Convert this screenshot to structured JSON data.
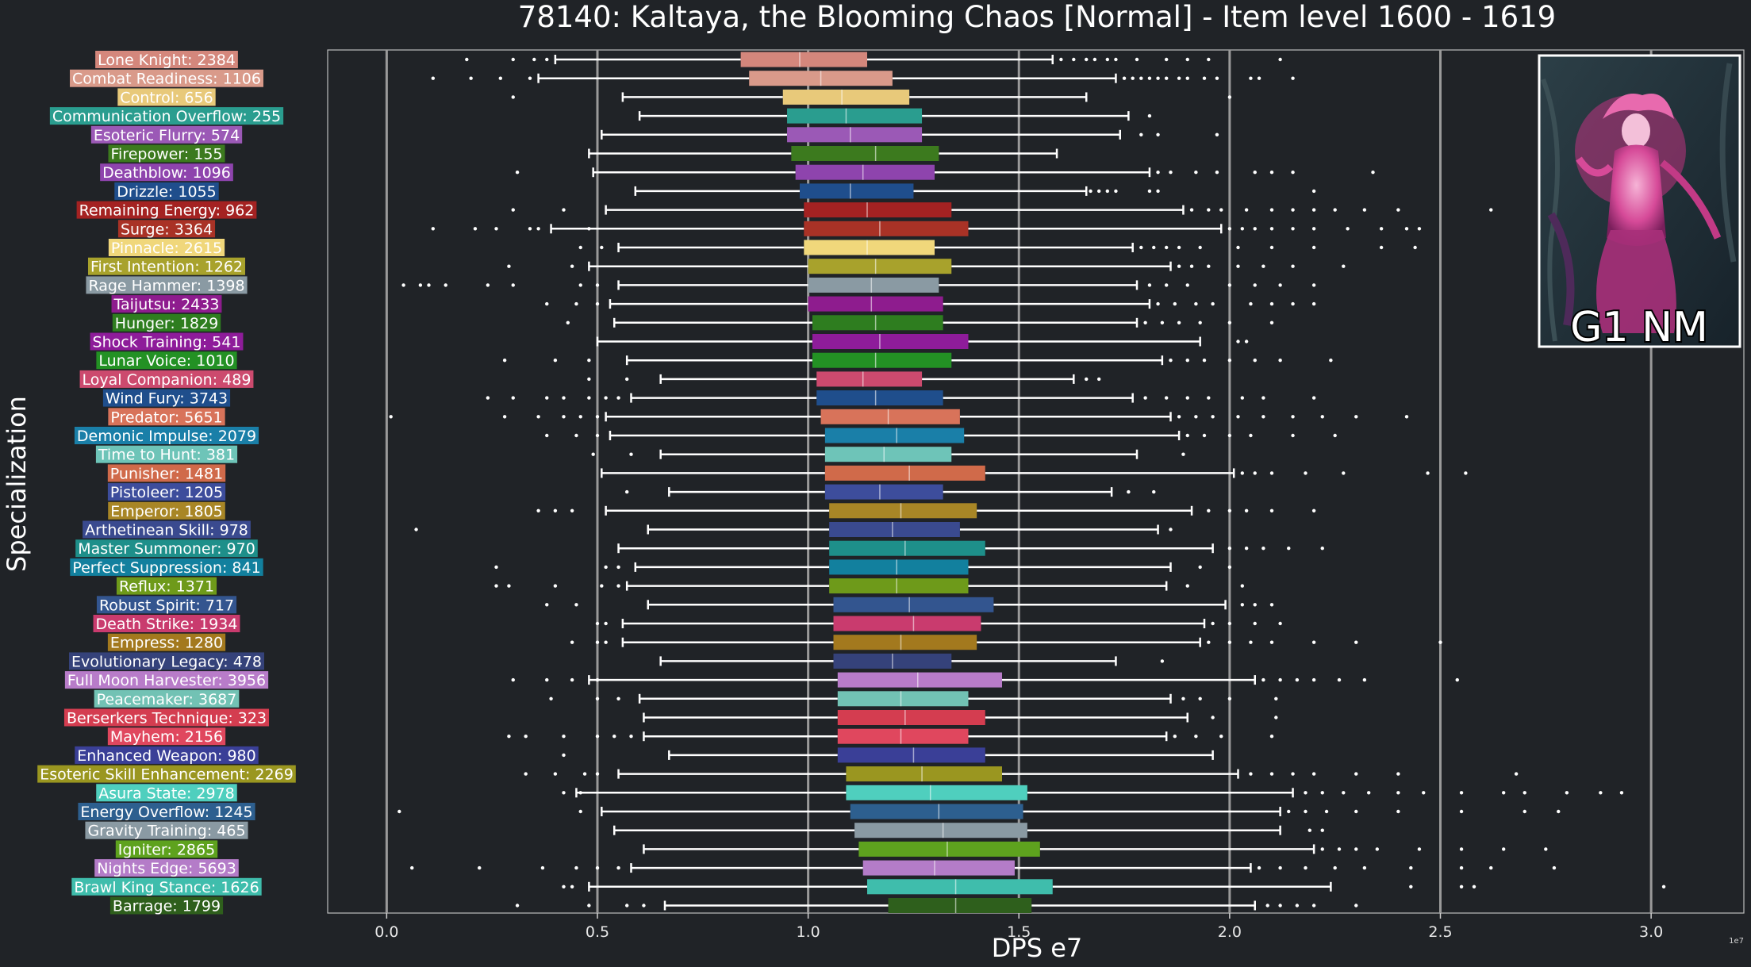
{
  "badge": {
    "text": "G1 NM"
  },
  "colors": {
    "background": "#202327",
    "grid": "#9a9a9a",
    "whisker": "#ffffff"
  },
  "chart_data": {
    "type": "box",
    "title": "78140: Kaltaya, the Blooming Chaos [Normal] - Item level 1600 - 1619",
    "xlabel": "DPS e7",
    "ylabel": "Specialization",
    "scale_note": "1e7",
    "xlim": [
      -0.14,
      3.22
    ],
    "xticks": [
      0.0,
      0.5,
      1.0,
      1.5,
      2.0,
      2.5,
      3.0
    ],
    "xtick_labels": [
      "0.0",
      "0.5",
      "1.0",
      "1.5",
      "2.0",
      "2.5",
      "3.0"
    ],
    "grid": "vertical",
    "series": [
      {
        "label": "Lone Knight: 2384",
        "color": "#d4877c",
        "whislo": 0.4,
        "q1": 0.84,
        "med": 0.98,
        "q3": 1.14,
        "whishi": 1.58,
        "outliers": [
          0.19,
          0.3,
          0.35,
          0.38,
          1.6,
          1.63,
          1.66,
          1.68,
          1.71,
          1.73,
          1.78,
          1.85,
          1.9,
          1.95,
          2.12
        ]
      },
      {
        "label": "Combat Readiness: 1106",
        "color": "#d99a8a",
        "whislo": 0.36,
        "q1": 0.86,
        "med": 1.03,
        "q3": 1.2,
        "whishi": 1.73,
        "outliers": [
          0.11,
          0.2,
          0.27,
          0.34,
          1.75,
          1.77,
          1.79,
          1.81,
          1.83,
          1.85,
          1.88,
          1.9,
          1.94,
          1.97,
          2.05,
          2.07,
          2.15
        ]
      },
      {
        "label": "Control: 656",
        "color": "#e8c97a",
        "whislo": 0.56,
        "q1": 0.94,
        "med": 1.08,
        "q3": 1.24,
        "whishi": 1.66,
        "outliers": [
          0.3,
          2.0
        ]
      },
      {
        "label": "Communication Overflow: 255",
        "color": "#2a9d8f",
        "whislo": 0.6,
        "q1": 0.95,
        "med": 1.09,
        "q3": 1.27,
        "whishi": 1.76,
        "outliers": [
          1.81
        ]
      },
      {
        "label": "Esoteric Flurry: 574",
        "color": "#9b59b6",
        "whislo": 0.51,
        "q1": 0.95,
        "med": 1.1,
        "q3": 1.27,
        "whishi": 1.74,
        "outliers": [
          1.79,
          1.83,
          1.97
        ]
      },
      {
        "label": "Firepower: 155",
        "color": "#3c7a1e",
        "whislo": 0.48,
        "q1": 0.96,
        "med": 1.16,
        "q3": 1.31,
        "whishi": 1.59,
        "outliers": []
      },
      {
        "label": "Deathblow: 1096",
        "color": "#8e44ad",
        "whislo": 0.49,
        "q1": 0.97,
        "med": 1.13,
        "q3": 1.3,
        "whishi": 1.81,
        "outliers": [
          0.31,
          1.83,
          1.86,
          1.92,
          1.97,
          2.06,
          2.1,
          2.15,
          2.34
        ]
      },
      {
        "label": "Drizzle: 1055",
        "color": "#1f4e8c",
        "whislo": 0.59,
        "q1": 0.98,
        "med": 1.1,
        "q3": 1.25,
        "whishi": 1.66,
        "outliers": [
          1.67,
          1.69,
          1.71,
          1.73,
          1.81,
          1.83,
          2.2
        ]
      },
      {
        "label": "Remaining Energy: 962",
        "color": "#a42222",
        "whislo": 0.52,
        "q1": 0.99,
        "med": 1.14,
        "q3": 1.34,
        "whishi": 1.89,
        "outliers": [
          0.3,
          0.42,
          1.91,
          1.95,
          1.98,
          2.04,
          2.1,
          2.15,
          2.2,
          2.25,
          2.32,
          2.4,
          2.62
        ]
      },
      {
        "label": "Surge: 3364",
        "color": "#a93226",
        "whislo": 0.39,
        "q1": 0.99,
        "med": 1.17,
        "q3": 1.38,
        "whishi": 1.98,
        "outliers": [
          0.11,
          0.21,
          0.26,
          0.34,
          0.36,
          0.48,
          2.0,
          2.03,
          2.06,
          2.1,
          2.15,
          2.2,
          2.28,
          2.36,
          2.42,
          2.45
        ]
      },
      {
        "label": "Pinnacle: 2615",
        "color": "#f0d77b",
        "whislo": 0.55,
        "q1": 0.99,
        "med": 1.14,
        "q3": 1.3,
        "whishi": 1.77,
        "outliers": [
          0.46,
          0.51,
          1.79,
          1.82,
          1.85,
          1.88,
          1.93,
          2.02,
          2.1,
          2.2,
          2.36,
          2.44
        ]
      },
      {
        "label": "First Intention: 1262",
        "color": "#a8a22c",
        "whislo": 0.48,
        "q1": 1.0,
        "med": 1.16,
        "q3": 1.34,
        "whishi": 1.86,
        "outliers": [
          0.29,
          0.44,
          1.88,
          1.91,
          1.95,
          2.02,
          2.08,
          2.15,
          2.27
        ]
      },
      {
        "label": "Rage Hammer: 1398",
        "color": "#8a9aa3",
        "whislo": 0.55,
        "q1": 1.0,
        "med": 1.15,
        "q3": 1.31,
        "whishi": 1.78,
        "outliers": [
          0.04,
          0.08,
          0.1,
          0.14,
          0.24,
          0.3,
          0.46,
          0.5,
          1.81,
          1.85,
          1.9,
          2.0,
          2.06,
          2.12,
          2.2
        ]
      },
      {
        "label": "Taijutsu: 2433",
        "color": "#8e1c8e",
        "whislo": 0.53,
        "q1": 1.0,
        "med": 1.15,
        "q3": 1.32,
        "whishi": 1.81,
        "outliers": [
          0.38,
          0.45,
          0.5,
          1.83,
          1.87,
          1.92,
          1.96,
          2.05,
          2.1,
          2.15,
          2.2
        ]
      },
      {
        "label": "Hunger: 1829",
        "color": "#2e7d1f",
        "whislo": 0.54,
        "q1": 1.01,
        "med": 1.16,
        "q3": 1.32,
        "whishi": 1.78,
        "outliers": [
          0.43,
          1.8,
          1.84,
          1.88,
          1.93,
          2.0,
          2.1
        ]
      },
      {
        "label": "Shock Training: 541",
        "color": "#8e1c9a",
        "whislo": 0.5,
        "q1": 1.01,
        "med": 1.17,
        "q3": 1.38,
        "whishi": 1.93,
        "outliers": [
          2.02,
          2.04
        ]
      },
      {
        "label": "Lunar Voice: 1010",
        "color": "#239124",
        "whislo": 0.57,
        "q1": 1.01,
        "med": 1.16,
        "q3": 1.34,
        "whishi": 1.84,
        "outliers": [
          0.28,
          0.4,
          0.48,
          1.86,
          1.9,
          1.94,
          2.0,
          2.06,
          2.12,
          2.24
        ]
      },
      {
        "label": "Loyal Companion: 489",
        "color": "#cc4a6e",
        "whislo": 0.65,
        "q1": 1.02,
        "med": 1.13,
        "q3": 1.27,
        "whishi": 1.63,
        "outliers": [
          0.48,
          0.57,
          1.66,
          1.69
        ]
      },
      {
        "label": "Wind Fury: 3743",
        "color": "#1f4e8c",
        "whislo": 0.58,
        "q1": 1.02,
        "med": 1.16,
        "q3": 1.32,
        "whishi": 1.77,
        "outliers": [
          0.24,
          0.3,
          0.38,
          0.42,
          0.48,
          0.52,
          0.55,
          1.8,
          1.85,
          1.9,
          1.95,
          2.03,
          2.08,
          2.2
        ]
      },
      {
        "label": "Predator: 5651",
        "color": "#d8735a",
        "whislo": 0.52,
        "q1": 1.03,
        "med": 1.19,
        "q3": 1.36,
        "whishi": 1.86,
        "outliers": [
          0.01,
          0.28,
          0.36,
          0.42,
          0.46,
          0.5,
          1.88,
          1.92,
          1.96,
          2.02,
          2.08,
          2.15,
          2.22,
          2.3,
          2.42
        ]
      },
      {
        "label": "Demonic Impulse: 2079",
        "color": "#1a7fa8",
        "whislo": 0.53,
        "q1": 1.04,
        "med": 1.21,
        "q3": 1.37,
        "whishi": 1.88,
        "outliers": [
          0.38,
          0.45,
          0.5,
          1.9,
          1.94,
          2.0,
          2.05,
          2.15,
          2.25
        ]
      },
      {
        "label": "Time to Hunt: 381",
        "color": "#6ec4b8",
        "whislo": 0.65,
        "q1": 1.04,
        "med": 1.18,
        "q3": 1.34,
        "whishi": 1.78,
        "outliers": [
          0.49,
          0.58,
          1.89
        ]
      },
      {
        "label": "Punisher: 1481",
        "color": "#d06a4a",
        "whislo": 0.51,
        "q1": 1.04,
        "med": 1.24,
        "q3": 1.42,
        "whishi": 2.01,
        "outliers": [
          2.03,
          2.06,
          2.1,
          2.18,
          2.27,
          2.47,
          2.56
        ]
      },
      {
        "label": "Pistoleer: 1205",
        "color": "#3d4d9c",
        "whislo": 0.67,
        "q1": 1.04,
        "med": 1.17,
        "q3": 1.32,
        "whishi": 1.72,
        "outliers": [
          0.57,
          1.76,
          1.82
        ]
      },
      {
        "label": "Emperor: 1805",
        "color": "#a88626",
        "whislo": 0.52,
        "q1": 1.05,
        "med": 1.22,
        "q3": 1.4,
        "whishi": 1.91,
        "outliers": [
          0.36,
          0.4,
          0.44,
          1.95,
          2.0,
          2.04,
          2.1,
          2.2
        ]
      },
      {
        "label": "Arthetinean Skill: 978",
        "color": "#3a4a8f",
        "whislo": 0.62,
        "q1": 1.05,
        "med": 1.2,
        "q3": 1.36,
        "whishi": 1.83,
        "outliers": [
          0.07,
          1.86
        ]
      },
      {
        "label": "Master Summoner: 970",
        "color": "#1e8f8a",
        "whislo": 0.55,
        "q1": 1.05,
        "med": 1.23,
        "q3": 1.42,
        "whishi": 1.96,
        "outliers": [
          2.0,
          2.04,
          2.08,
          2.14,
          2.22
        ]
      },
      {
        "label": "Perfect Suppression: 841",
        "color": "#12809e",
        "whislo": 0.59,
        "q1": 1.05,
        "med": 1.21,
        "q3": 1.38,
        "whishi": 1.86,
        "outliers": [
          0.26,
          0.52,
          0.55,
          1.93,
          2.0
        ]
      },
      {
        "label": "Reflux: 1371",
        "color": "#6e9a1a",
        "whislo": 0.57,
        "q1": 1.05,
        "med": 1.21,
        "q3": 1.38,
        "whishi": 1.85,
        "outliers": [
          0.26,
          0.29,
          0.4,
          0.51,
          0.55,
          1.9,
          2.03
        ]
      },
      {
        "label": "Robust Spirit: 717",
        "color": "#33558f",
        "whislo": 0.62,
        "q1": 1.06,
        "med": 1.24,
        "q3": 1.44,
        "whishi": 1.99,
        "outliers": [
          0.38,
          0.45,
          2.03,
          2.06,
          2.1
        ]
      },
      {
        "label": "Death Strike: 1934",
        "color": "#c93b6e",
        "whislo": 0.56,
        "q1": 1.06,
        "med": 1.25,
        "q3": 1.41,
        "whishi": 1.94,
        "outliers": [
          0.5,
          0.52,
          1.96,
          2.0,
          2.06,
          2.12
        ]
      },
      {
        "label": "Empress: 1280",
        "color": "#a3791e",
        "whislo": 0.56,
        "q1": 1.06,
        "med": 1.22,
        "q3": 1.4,
        "whishi": 1.93,
        "outliers": [
          0.44,
          0.5,
          0.52,
          1.95,
          2.0,
          2.05,
          2.1,
          2.2,
          2.3,
          2.5
        ]
      },
      {
        "label": "Evolutionary Legacy: 478",
        "color": "#35427a",
        "whislo": 0.65,
        "q1": 1.06,
        "med": 1.2,
        "q3": 1.34,
        "whishi": 1.73,
        "outliers": [
          1.84
        ]
      },
      {
        "label": "Full Moon Harvester: 3956",
        "color": "#b87cc9",
        "whislo": 0.48,
        "q1": 1.07,
        "med": 1.26,
        "q3": 1.46,
        "whishi": 2.06,
        "outliers": [
          0.3,
          0.38,
          0.44,
          0.5,
          2.08,
          2.12,
          2.16,
          2.2,
          2.26,
          2.32,
          2.54
        ]
      },
      {
        "label": "Peacemaker: 3687",
        "color": "#72c2b4",
        "whislo": 0.6,
        "q1": 1.07,
        "med": 1.22,
        "q3": 1.38,
        "whishi": 1.86,
        "outliers": [
          0.39,
          0.5,
          0.55,
          1.89,
          1.93,
          2.0,
          2.11
        ]
      },
      {
        "label": "Berserkers Technique: 323",
        "color": "#d43d50",
        "whislo": 0.61,
        "q1": 1.07,
        "med": 1.23,
        "q3": 1.42,
        "whishi": 1.9,
        "outliers": [
          1.96,
          2.11
        ]
      },
      {
        "label": "Mayhem: 2156",
        "color": "#e0475e",
        "whislo": 0.61,
        "q1": 1.07,
        "med": 1.22,
        "q3": 1.38,
        "whishi": 1.85,
        "outliers": [
          0.29,
          0.33,
          0.42,
          0.5,
          0.54,
          0.58,
          1.87,
          1.92,
          1.98,
          2.1
        ]
      },
      {
        "label": "Enhanced Weapon: 980",
        "color": "#3a3f97",
        "whislo": 0.67,
        "q1": 1.07,
        "med": 1.25,
        "q3": 1.42,
        "whishi": 1.96,
        "outliers": [
          0.42
        ]
      },
      {
        "label": "Esoteric Skill Enhancement: 2269",
        "color": "#9a9620",
        "whislo": 0.55,
        "q1": 1.09,
        "med": 1.27,
        "q3": 1.46,
        "whishi": 2.02,
        "outliers": [
          0.33,
          0.4,
          0.47,
          0.5,
          2.05,
          2.1,
          2.15,
          2.2,
          2.3,
          2.4,
          2.68
        ]
      },
      {
        "label": "Asura State: 2978",
        "color": "#4fcfbe",
        "whislo": 0.45,
        "q1": 1.09,
        "med": 1.29,
        "q3": 1.52,
        "whishi": 2.15,
        "outliers": [
          0.42,
          0.46,
          2.18,
          2.22,
          2.27,
          2.33,
          2.4,
          2.46,
          2.55,
          2.65,
          2.7,
          2.8,
          2.88,
          2.93
        ]
      },
      {
        "label": "Energy Overflow: 1245",
        "color": "#2d5f8f",
        "whislo": 0.51,
        "q1": 1.1,
        "med": 1.31,
        "q3": 1.51,
        "whishi": 2.12,
        "outliers": [
          0.03,
          0.46,
          2.14,
          2.18,
          2.23,
          2.3,
          2.4,
          2.55,
          2.7,
          2.78
        ]
      },
      {
        "label": "Gravity Training: 465",
        "color": "#8a9aa3",
        "whislo": 0.54,
        "q1": 1.11,
        "med": 1.32,
        "q3": 1.52,
        "whishi": 2.12,
        "outliers": [
          2.19,
          2.22
        ]
      },
      {
        "label": "Igniter: 2865",
        "color": "#5ea21e",
        "whislo": 0.61,
        "q1": 1.12,
        "med": 1.33,
        "q3": 1.55,
        "whishi": 2.2,
        "outliers": [
          2.22,
          2.26,
          2.3,
          2.35,
          2.45,
          2.55,
          2.65,
          2.75
        ]
      },
      {
        "label": "Nights Edge: 5693",
        "color": "#b47cc8",
        "whislo": 0.58,
        "q1": 1.13,
        "med": 1.3,
        "q3": 1.49,
        "whishi": 2.05,
        "outliers": [
          0.06,
          0.22,
          0.37,
          0.45,
          0.5,
          0.55,
          2.07,
          2.12,
          2.18,
          2.25,
          2.32,
          2.43,
          2.55,
          2.62,
          2.77
        ]
      },
      {
        "label": "Brawl King Stance: 1626",
        "color": "#3fbdac",
        "whislo": 0.48,
        "q1": 1.14,
        "med": 1.35,
        "q3": 1.58,
        "whishi": 2.24,
        "outliers": [
          0.42,
          0.44,
          2.43,
          2.55,
          2.58,
          3.03
        ]
      },
      {
        "label": "Barrage: 1799",
        "color": "#2e5f1c",
        "whislo": 0.66,
        "q1": 1.19,
        "med": 1.35,
        "q3": 1.53,
        "whishi": 2.06,
        "outliers": [
          0.31,
          0.48,
          0.57,
          0.61,
          2.09,
          2.12,
          2.16,
          2.2,
          2.3
        ]
      }
    ]
  }
}
